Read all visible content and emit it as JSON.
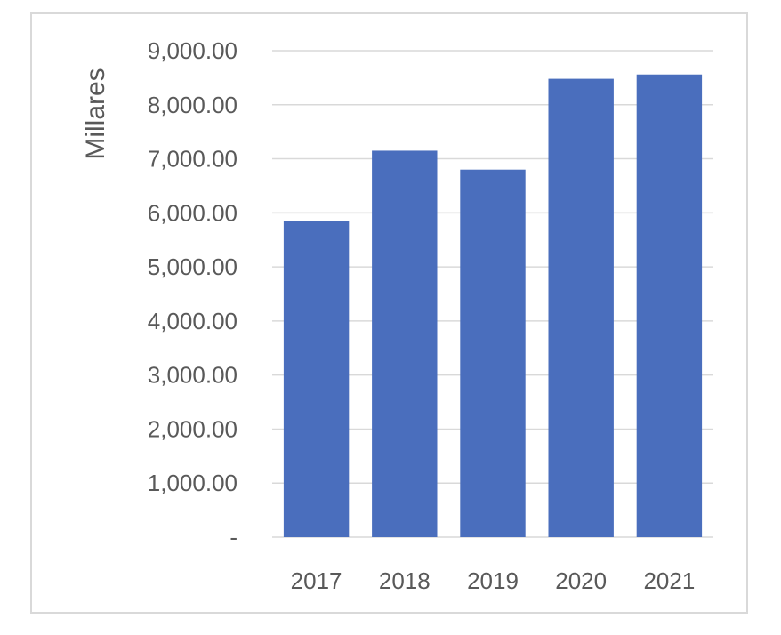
{
  "chart_data": {
    "type": "bar",
    "title": "",
    "xlabel": "",
    "ylabel": "Millares",
    "categories": [
      "2017",
      "2018",
      "2019",
      "2020",
      "2021"
    ],
    "values": [
      5850,
      7150,
      6800,
      8480,
      8560
    ],
    "ylim": [
      0,
      9000
    ],
    "y_ticks": [
      0,
      1000,
      2000,
      3000,
      4000,
      5000,
      6000,
      7000,
      8000,
      9000
    ],
    "y_tick_labels": [
      "-",
      "1,000.00",
      "2,000.00",
      "3,000.00",
      "4,000.00",
      "5,000.00",
      "6,000.00",
      "7,000.00",
      "8,000.00",
      "9,000.00"
    ],
    "grid": true,
    "legend": "none",
    "bar_color": "#4a6ebd",
    "grid_color": "#d9d9d9",
    "text_color": "#595959"
  }
}
